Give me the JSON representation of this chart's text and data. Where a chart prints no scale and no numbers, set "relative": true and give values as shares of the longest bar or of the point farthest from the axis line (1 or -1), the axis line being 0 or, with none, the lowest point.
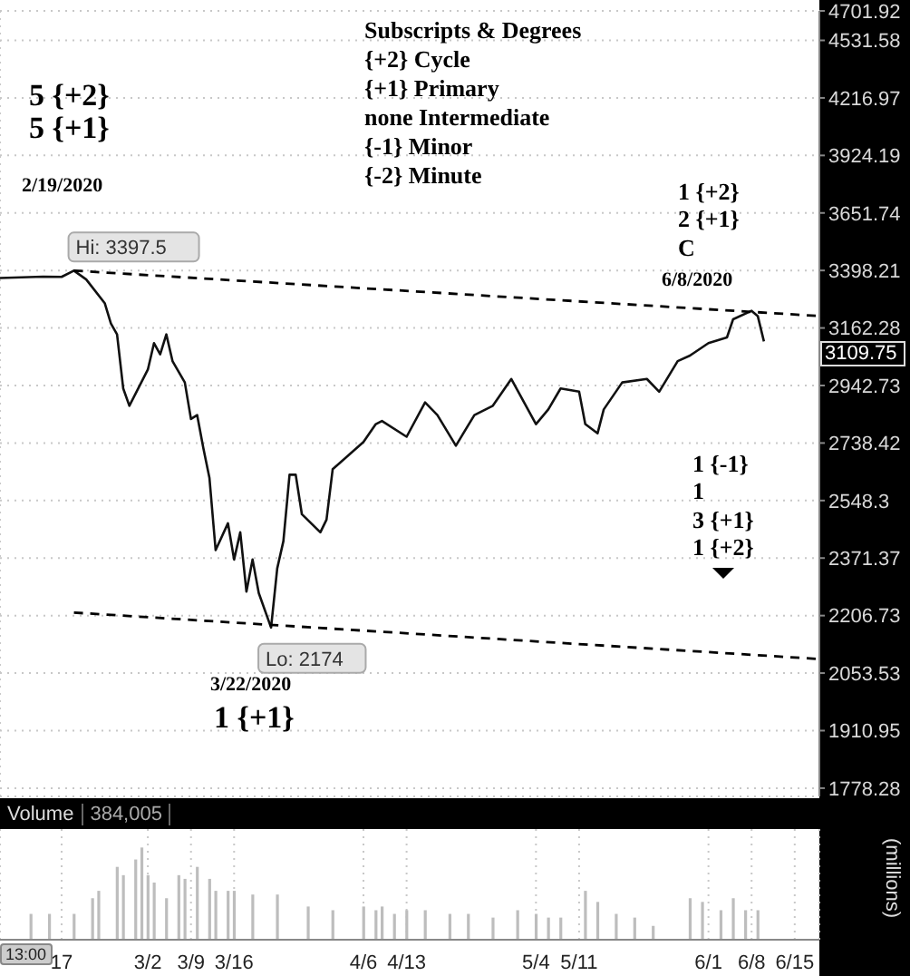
{
  "chart_data": [
    {
      "type": "line",
      "log": true,
      "grid": true,
      "tick_labels": "y",
      "xlim": [
        "2020-02-07",
        "2020-06-19"
      ],
      "xticks": [
        {
          "value": "2020-02-17",
          "label": null
        },
        {
          "value": "2020-03-02",
          "label": null
        },
        {
          "value": "2020-03-09",
          "label": null
        },
        {
          "value": "2020-03-16",
          "label": null
        },
        {
          "value": "2020-04-06",
          "label": null
        },
        {
          "value": "2020-04-13",
          "label": null
        },
        {
          "value": "2020-05-04",
          "label": null
        },
        {
          "value": "2020-05-11",
          "label": null
        },
        {
          "value": "2020-06-01",
          "label": null
        },
        {
          "value": "2020-06-08",
          "label": null
        },
        {
          "value": "2020-06-15",
          "label": null
        }
      ],
      "ylim": [
        1760,
        4701.92
      ],
      "yticks": [
        1778.28,
        1910.95,
        2053.53,
        2206.73,
        2371.37,
        2548.3,
        2738.42,
        2942.73,
        3162.28,
        3398.21,
        3651.74,
        3924.19,
        4216.97,
        4531.58,
        4701.92
      ],
      "series": [
        {
          "color": "#111111",
          "x": [
            "2020-02-07",
            "2020-02-14",
            "2020-02-17",
            "2020-02-19",
            "2020-02-21",
            "2020-02-24",
            "2020-02-25",
            "2020-02-26",
            "2020-02-27",
            "2020-02-28",
            "2020-03-02",
            "2020-03-03",
            "2020-03-04",
            "2020-03-05",
            "2020-03-06",
            "2020-03-08",
            "2020-03-09",
            "2020-03-10",
            "2020-03-11",
            "2020-03-12",
            "2020-03-13",
            "2020-03-15",
            "2020-03-16",
            "2020-03-17",
            "2020-03-18",
            "2020-03-19",
            "2020-03-20",
            "2020-03-22",
            "2020-03-23",
            "2020-03-24",
            "2020-03-25",
            "2020-03-26",
            "2020-03-27",
            "2020-03-30",
            "2020-03-31",
            "2020-04-01",
            "2020-04-06",
            "2020-04-08",
            "2020-04-09",
            "2020-04-13",
            "2020-04-16",
            "2020-04-18",
            "2020-04-21",
            "2020-04-24",
            "2020-04-27",
            "2020-04-30",
            "2020-05-04",
            "2020-05-06",
            "2020-05-08",
            "2020-05-11",
            "2020-05-12",
            "2020-05-14",
            "2020-05-15",
            "2020-05-18",
            "2020-05-22",
            "2020-05-24",
            "2020-05-27",
            "2020-05-29",
            "2020-06-01",
            "2020-06-04",
            "2020-06-05",
            "2020-06-08",
            "2020-06-09",
            "2020-06-10"
          ],
          "values": [
            3366,
            3372,
            3371,
            3397.5,
            3360,
            3262,
            3180,
            3137,
            2932,
            2869,
            3002,
            3103,
            3060,
            3137,
            3034,
            2954,
            2822,
            2836,
            2722,
            2621,
            2395,
            2477,
            2367,
            2449,
            2274,
            2367,
            2270,
            2174,
            2341,
            2422,
            2632,
            2632,
            2505,
            2449,
            2488,
            2650,
            2742,
            2804,
            2815,
            2760,
            2881,
            2836,
            2729,
            2836,
            2869,
            2967,
            2804,
            2856,
            2932,
            2920,
            2804,
            2772,
            2856,
            2954,
            2967,
            2920,
            3034,
            3055,
            3103,
            3125,
            3197,
            3231,
            3210,
            3109.75
          ]
        },
        {
          "type": "line",
          "line_style": "dashed",
          "color": "#000000",
          "x": [
            "2020-02-19",
            "2020-06-19"
          ],
          "values": [
            3397.5,
            3210
          ]
        },
        {
          "type": "line",
          "line_style": "dashed",
          "color": "#000000",
          "x": [
            "2020-02-19",
            "2020-06-19"
          ],
          "values": [
            2215,
            2090
          ]
        }
      ],
      "annotations": [
        "Subscripts & Degrees",
        "{+2} Cycle",
        "{+1} Primary",
        "none Intermediate",
        "{-1} Minor",
        "{-2} Minute",
        "5 {+2}",
        "5 {+1}",
        "2/19/2020",
        "1 {+2}",
        "2 {+1}",
        "C",
        "6/8/2020",
        "1 {-1}",
        "1",
        "3 {+1}",
        "1 {+2}",
        "3/22/2020",
        "1 {+1}",
        "3109.75",
        {
          "text": "Hi: 3397.5",
          "x": "2020-02-19",
          "y": 3397.5
        },
        {
          "text": "Lo: 2174",
          "x": "2020-03-22",
          "y": 2174
        }
      ]
    },
    {
      "type": "bar",
      "relative": true,
      "grid": "x",
      "tick_labels": "x",
      "title": "Volume",
      "ylabel": "(millions)",
      "color": "#bdbdbd",
      "xlim": [
        "2020-02-07",
        "2020-06-19"
      ],
      "xticks": [
        {
          "value": "2020-02-17",
          "label": "17"
        },
        {
          "value": "2020-03-02",
          "label": "3/2"
        },
        {
          "value": "2020-03-09",
          "label": "3/9"
        },
        {
          "value": "2020-03-16",
          "label": "3/16"
        },
        {
          "value": "2020-04-06",
          "label": "4/6"
        },
        {
          "value": "2020-04-13",
          "label": "4/13"
        },
        {
          "value": "2020-05-04",
          "label": "5/4"
        },
        {
          "value": "2020-05-11",
          "label": "5/11"
        },
        {
          "value": "2020-06-01",
          "label": "6/1"
        },
        {
          "value": "2020-06-08",
          "label": "6/8"
        },
        {
          "value": "2020-06-15",
          "label": "6/15"
        }
      ],
      "x": [
        "2020-02-12",
        "2020-02-15",
        "2020-02-19",
        "2020-02-22",
        "2020-02-23",
        "2020-02-26",
        "2020-02-27",
        "2020-02-29",
        "2020-03-01",
        "2020-03-02",
        "2020-03-03",
        "2020-03-05",
        "2020-03-07",
        "2020-03-08",
        "2020-03-10",
        "2020-03-12",
        "2020-03-13",
        "2020-03-15",
        "2020-03-16",
        "2020-03-19",
        "2020-03-23",
        "2020-03-28",
        "2020-04-01",
        "2020-04-06",
        "2020-04-08",
        "2020-04-09",
        "2020-04-11",
        "2020-04-13",
        "2020-04-16",
        "2020-04-20",
        "2020-04-23",
        "2020-04-27",
        "2020-05-01",
        "2020-05-04",
        "2020-05-06",
        "2020-05-08",
        "2020-05-12",
        "2020-05-14",
        "2020-05-17",
        "2020-05-20",
        "2020-05-23",
        "2020-05-29",
        "2020-05-31",
        "2020-06-03",
        "2020-06-05",
        "2020-06-07",
        "2020-06-09"
      ],
      "values": [
        0.28,
        0.28,
        0.28,
        0.45,
        0.53,
        0.79,
        0.7,
        0.87,
        1,
        0.7,
        0.62,
        0.45,
        0.7,
        0.66,
        0.79,
        0.66,
        0.53,
        0.53,
        0.53,
        0.49,
        0.49,
        0.36,
        0.32,
        0.36,
        0.32,
        0.36,
        0.28,
        0.32,
        0.32,
        0.28,
        0.28,
        0.24,
        0.32,
        0.28,
        0.24,
        0.24,
        0.53,
        0.41,
        0.28,
        0.24,
        0.15,
        0.45,
        0.41,
        0.32,
        0.45,
        0.32,
        0.32
      ],
      "annotations": [
        "384,005",
        "13:00"
      ]
    }
  ]
}
